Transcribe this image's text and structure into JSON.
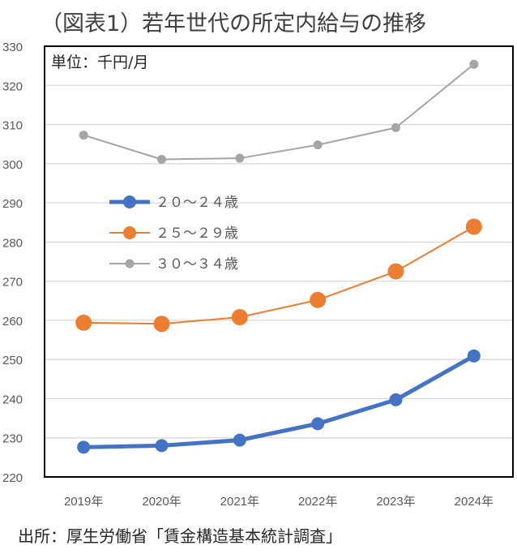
{
  "chart_data": {
    "type": "line",
    "title": "（図表1）若年世代の所定内給与の推移",
    "unit_label": "単位：千円/月",
    "source": "出所：厚生労働省「賃金構造基本統計調査」",
    "categories": [
      "2019年",
      "2020年",
      "2021年",
      "2022年",
      "2023年",
      "2024年"
    ],
    "ylim": [
      220,
      330
    ],
    "yticks": [
      220,
      230,
      240,
      250,
      260,
      270,
      280,
      290,
      300,
      310,
      320,
      330
    ],
    "grid": true,
    "legend_position": "left-middle",
    "series": [
      {
        "name": "２０～２４歳",
        "color": "#4472C4",
        "values": [
          227.6,
          228.0,
          229.4,
          233.6,
          239.7,
          250.9
        ]
      },
      {
        "name": "２５～２９歳",
        "color": "#ED7D31",
        "values": [
          259.4,
          259.1,
          260.8,
          265.2,
          272.5,
          283.9
        ]
      },
      {
        "name": "３０～３４歳",
        "color": "#A5A5A5",
        "values": [
          307.3,
          301.1,
          301.4,
          304.8,
          309.2,
          325.4
        ]
      }
    ]
  }
}
